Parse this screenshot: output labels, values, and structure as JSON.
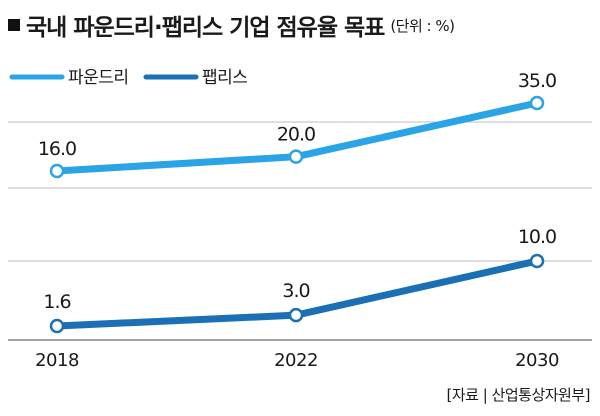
{
  "title": "국내 파운드리·팹리스 기업 점유율 목표",
  "unit": "(단위 : %)",
  "source": "[자료 | 산업통상자원부]",
  "colors": {
    "foundry": "#2aa4e6",
    "fabless": "#1a6fb5",
    "grid": "#bdbdbd"
  },
  "chart_data": {
    "type": "line",
    "title": "국내 파운드리·팹리스 기업 점유율 목표",
    "xlabel": "",
    "ylabel": "(단위 : %)",
    "categories": [
      "2018",
      "2022",
      "2030"
    ],
    "series": [
      {
        "name": "파운드리",
        "values": [
          16.0,
          20.0,
          35.0
        ],
        "labels": [
          "16.0",
          "20.0",
          "35.0"
        ]
      },
      {
        "name": "팹리스",
        "values": [
          1.6,
          3.0,
          10.0
        ],
        "labels": [
          "1.6",
          "3.0",
          "10.0"
        ]
      }
    ],
    "legend": "top-left",
    "grid": true
  }
}
